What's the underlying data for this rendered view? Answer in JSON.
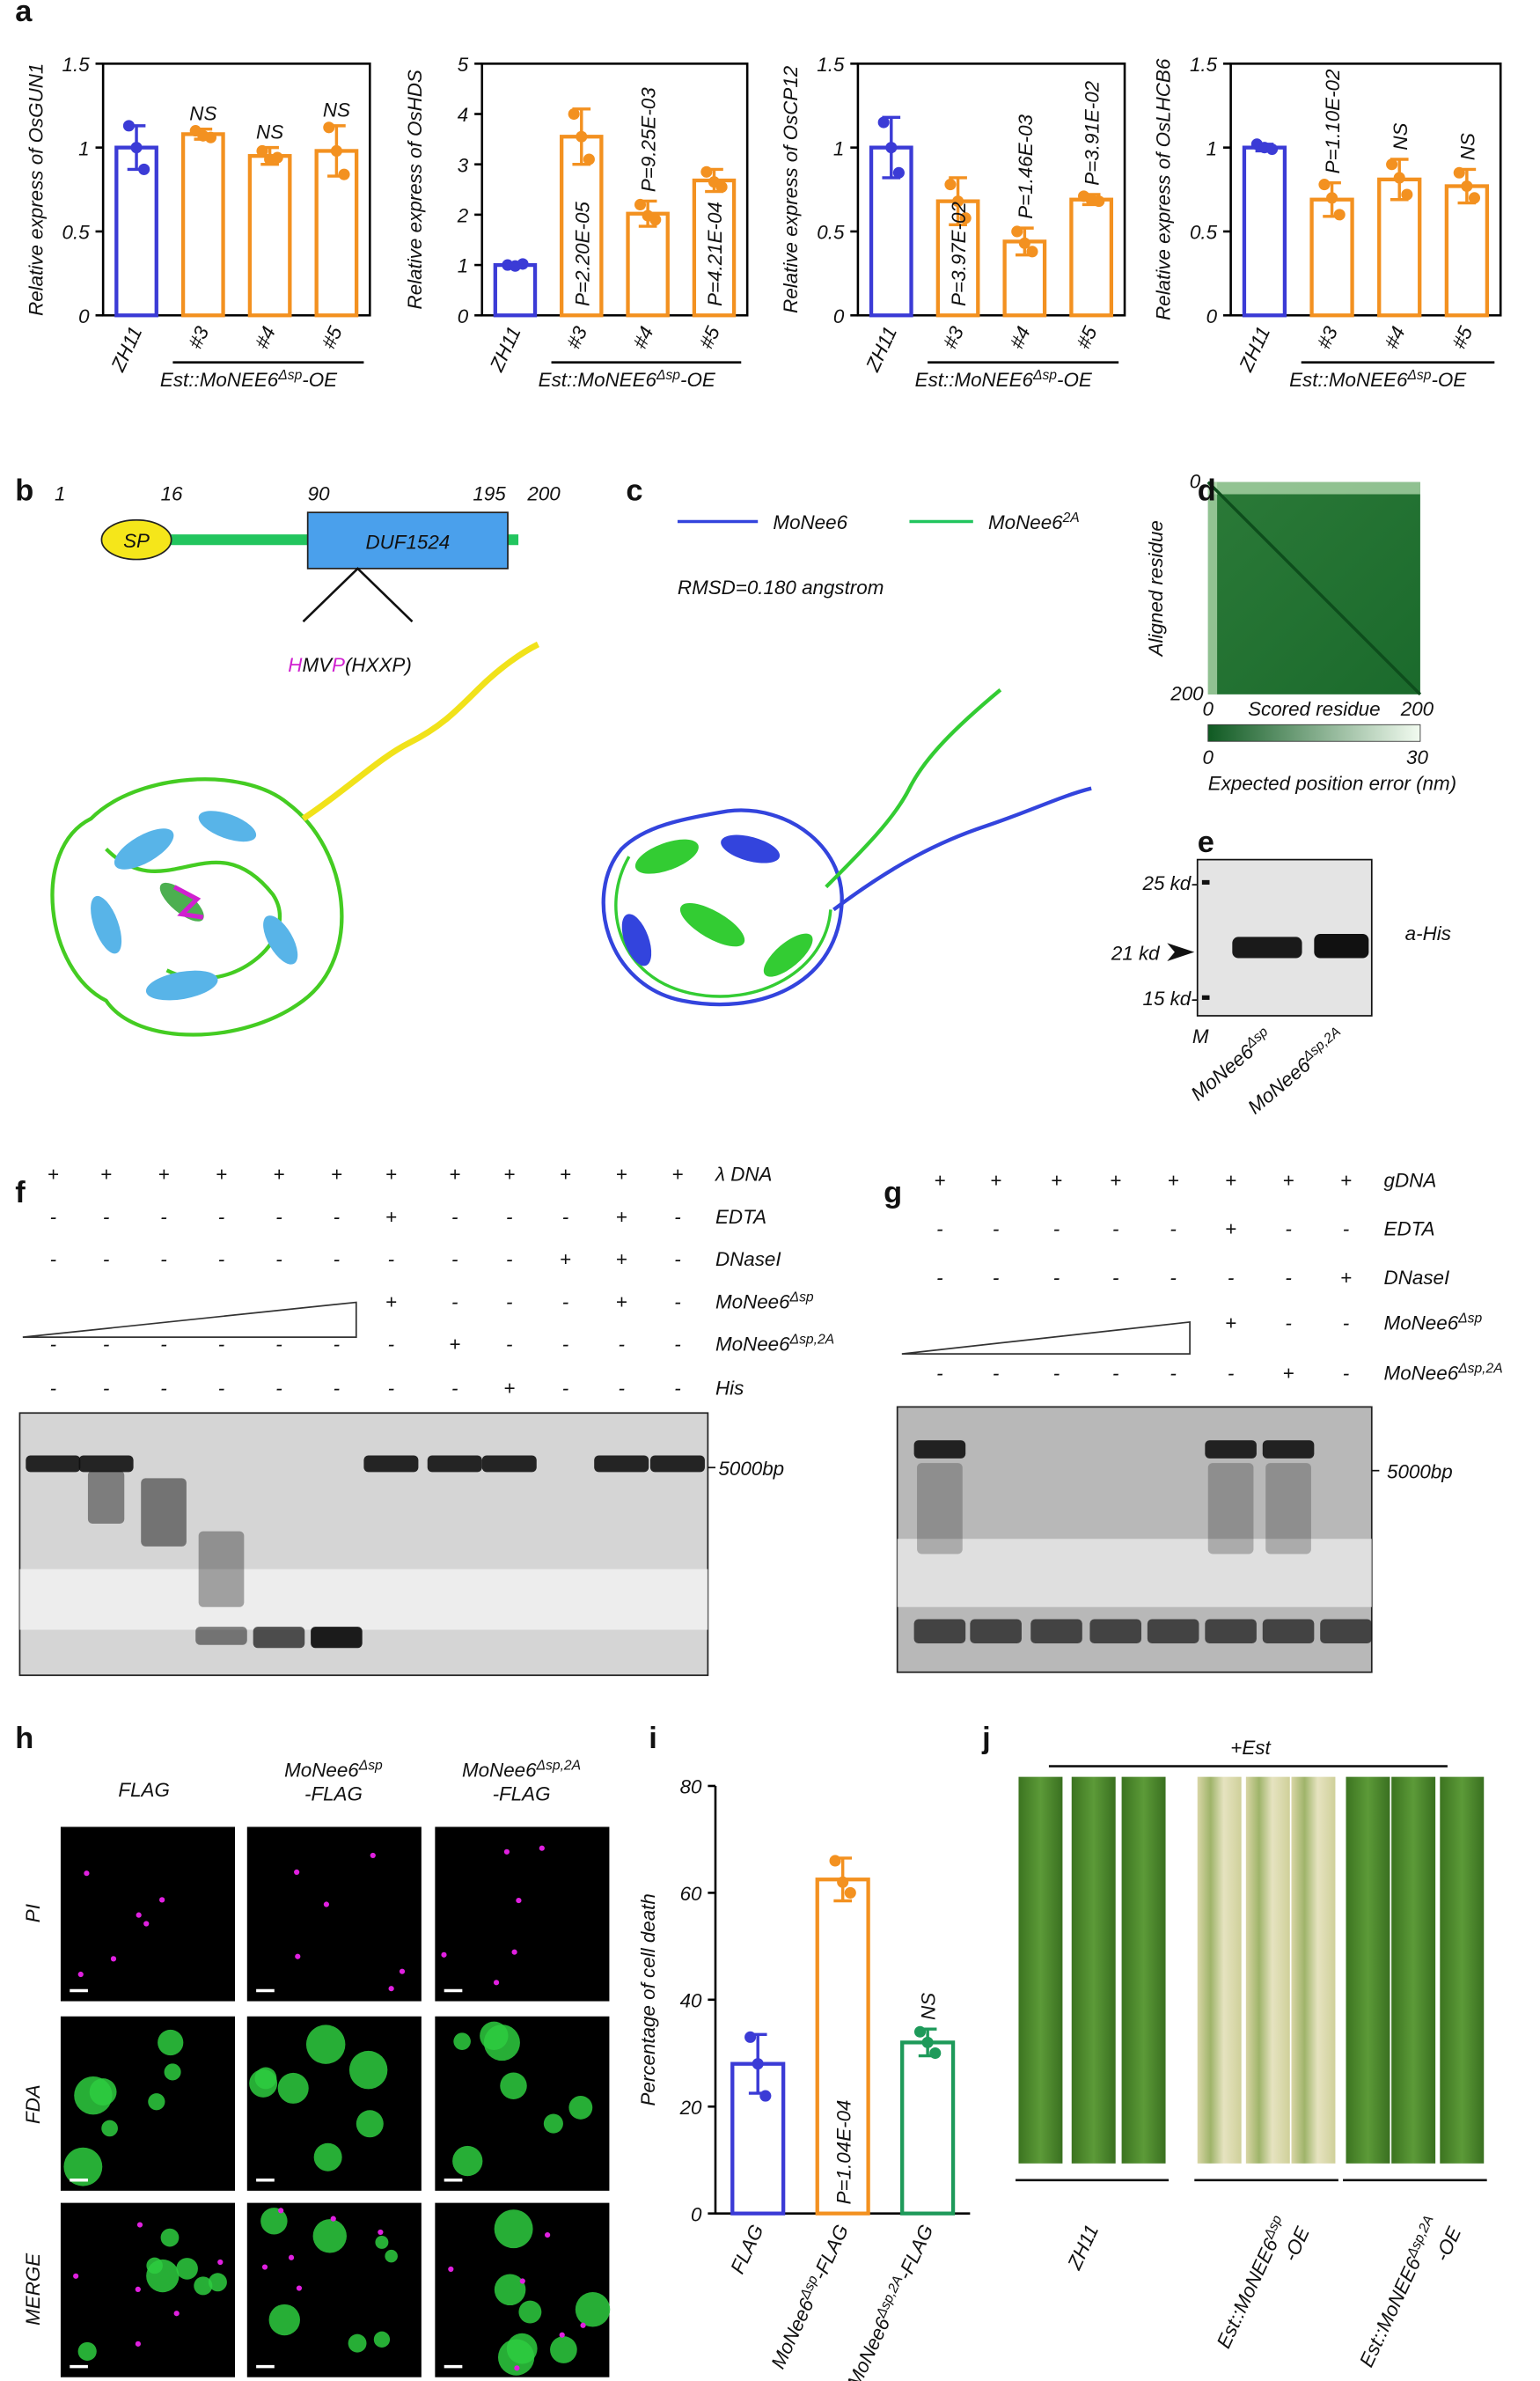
{
  "panel_letters": [
    "a",
    "b",
    "c",
    "d",
    "e",
    "f",
    "g",
    "h",
    "i",
    "j"
  ],
  "chart_data": [
    {
      "type": "bar",
      "ylabel": "Relative express of OsGUN1",
      "box": true,
      "categories": [
        "ZH11",
        "#3",
        "#4",
        "#5"
      ],
      "group_label": {
        "base": "Est::MoNEE6",
        "sup": "Δsp",
        "suffix": "-OE"
      },
      "values": [
        1.0,
        1.08,
        0.95,
        0.98
      ],
      "errors": [
        0.13,
        0.03,
        0.05,
        0.15
      ],
      "points": [
        [
          1.13,
          1.0,
          0.87
        ],
        [
          1.1,
          1.07,
          1.06
        ],
        [
          0.98,
          0.93,
          0.94
        ],
        [
          1.12,
          0.98,
          0.84
        ]
      ],
      "colors": [
        "#3b3bd6",
        "#f39120",
        "#f39120",
        "#f39120"
      ],
      "annotations": [
        null,
        "NS",
        "NS",
        "NS"
      ],
      "ylim": [
        0,
        1.5
      ],
      "yticks": [
        0,
        0.5,
        1,
        1.5
      ]
    },
    {
      "type": "bar",
      "ylabel": "Relative express of OsHDS",
      "box": true,
      "categories": [
        "ZH11",
        "#3",
        "#4",
        "#5"
      ],
      "group_label": {
        "base": "Est::MoNEE6",
        "sup": "Δsp",
        "suffix": "-OE"
      },
      "values": [
        1.0,
        3.55,
        2.02,
        2.68
      ],
      "errors": [
        0.03,
        0.55,
        0.25,
        0.22
      ],
      "points": [
        [
          1.0,
          0.98,
          1.02
        ],
        [
          4.0,
          3.55,
          3.1
        ],
        [
          2.2,
          1.98,
          1.9
        ],
        [
          2.85,
          2.65,
          2.55
        ]
      ],
      "colors": [
        "#3b3bd6",
        "#f39120",
        "#f39120",
        "#f39120"
      ],
      "annotations": [
        null,
        "P=2.20E-05",
        "P=9.25E-03",
        "P=4.21E-04"
      ],
      "ylim": [
        0,
        5
      ],
      "yticks": [
        0,
        1,
        2,
        3,
        4,
        5
      ]
    },
    {
      "type": "bar",
      "ylabel": "Relative express of OsCP12",
      "box": true,
      "categories": [
        "ZH11",
        "#3",
        "#4",
        "#5"
      ],
      "group_label": {
        "base": "Est::MoNEE6",
        "sup": "Δsp",
        "suffix": "-OE"
      },
      "values": [
        1.0,
        0.68,
        0.44,
        0.69
      ],
      "errors": [
        0.18,
        0.14,
        0.08,
        0.03
      ],
      "points": [
        [
          1.15,
          1.0,
          0.85
        ],
        [
          0.78,
          0.68,
          0.58
        ],
        [
          0.5,
          0.43,
          0.38
        ],
        [
          0.71,
          0.69,
          0.68
        ]
      ],
      "colors": [
        "#3b3bd6",
        "#f39120",
        "#f39120",
        "#f39120"
      ],
      "annotations": [
        null,
        "P=3.97E-02",
        "P=1.46E-03",
        "P=3.91E-02"
      ],
      "ylim": [
        0,
        1.5
      ],
      "yticks": [
        0,
        0.5,
        1,
        1.5
      ]
    },
    {
      "type": "bar",
      "ylabel": "Relative express of OsLHCB6",
      "box": true,
      "categories": [
        "ZH11",
        "#3",
        "#4",
        "#5"
      ],
      "group_label": {
        "base": "Est::MoNEE6",
        "sup": "Δsp",
        "suffix": "-OE"
      },
      "values": [
        1.0,
        0.69,
        0.81,
        0.77
      ],
      "errors": [
        0.02,
        0.1,
        0.12,
        0.1
      ],
      "points": [
        [
          1.02,
          1.0,
          0.99
        ],
        [
          0.78,
          0.7,
          0.6
        ],
        [
          0.9,
          0.82,
          0.72
        ],
        [
          0.85,
          0.77,
          0.7
        ]
      ],
      "colors": [
        "#3b3bd6",
        "#f39120",
        "#f39120",
        "#f39120"
      ],
      "annotations": [
        null,
        "P=1.10E-02",
        "NS",
        "NS"
      ],
      "ylim": [
        0,
        1.5
      ],
      "yticks": [
        0,
        0.5,
        1,
        1.5
      ]
    },
    {
      "type": "bar",
      "ylabel": "Percentage of cell death",
      "box": false,
      "categories": [
        "FLAG",
        {
          "base": "MoNee6",
          "sup": "Δsp",
          "suffix": "-FLAG"
        },
        {
          "base": "MoNee6",
          "sup": "Δsp,2A",
          "suffix": "-FLAG"
        }
      ],
      "values": [
        28,
        62.5,
        32
      ],
      "errors": [
        5.5,
        4,
        2.5
      ],
      "points": [
        [
          33,
          28,
          22
        ],
        [
          66,
          62,
          60
        ],
        [
          34,
          32,
          30
        ]
      ],
      "colors": [
        "#3b3bd6",
        "#f39120",
        "#1e9a5a"
      ],
      "annotations": [
        null,
        "P=1.04E-04",
        "NS"
      ],
      "ylim": [
        0,
        80
      ],
      "yticks": [
        0,
        20,
        40,
        60,
        80
      ]
    }
  ],
  "panel_b": {
    "positions": [
      1,
      16,
      90,
      195,
      200
    ],
    "signal": "SP",
    "domain": "DUF1524",
    "motif": [
      "H",
      "MV",
      "P",
      "(HXXP)"
    ]
  },
  "panel_c": {
    "legend": [
      "MoNee6",
      {
        "base": "MoNee6",
        "sup": "2A"
      }
    ],
    "rmsd": "RMSD=0.180 angstrom"
  },
  "panel_d": {
    "ylabel": "Aligned residue",
    "xlabel": "Scored residue",
    "yticks": [
      0,
      200
    ],
    "xticks": [
      0,
      200
    ],
    "colorbar_ticks": [
      0,
      30
    ],
    "colorbar_label": "Expected position error (nm)"
  },
  "panel_e": {
    "markers": [
      "25 kd-",
      "21 kd",
      "15 kd-"
    ],
    "antibody": "a-His",
    "lanes": [
      "M",
      {
        "base": "MoNee6",
        "sup": "Δsp"
      },
      {
        "base": "MoNee6",
        "sup": "Δsp,2A"
      }
    ]
  },
  "panel_f": {
    "rows": [
      "λ DNA",
      "EDTA",
      "DNaseI",
      {
        "base": "MoNee6",
        "sup": "Δsp"
      },
      {
        "base": "MoNee6",
        "sup": "Δsp,2A"
      },
      "His"
    ],
    "signs": [
      [
        "+",
        "+",
        "+",
        "+",
        "+",
        "+",
        "+",
        "+",
        "+",
        "+",
        "+",
        "+"
      ],
      [
        "-",
        "-",
        "-",
        "-",
        "-",
        "-",
        "+",
        "-",
        "-",
        "-",
        "+",
        "-"
      ],
      [
        "-",
        "-",
        "-",
        "-",
        "-",
        "-",
        "-",
        "-",
        "-",
        "+",
        "+",
        "-"
      ],
      [
        null,
        null,
        null,
        null,
        null,
        null,
        "+",
        "-",
        "-",
        "-",
        "+",
        "-"
      ],
      [
        "-",
        "-",
        "-",
        "-",
        "-",
        "-",
        "-",
        "+",
        "-",
        "-",
        "-",
        "-"
      ],
      [
        "-",
        "-",
        "-",
        "-",
        "-",
        "-",
        "-",
        "-",
        "+",
        "-",
        "-",
        "-"
      ]
    ],
    "size_marker": "5000bp"
  },
  "panel_g": {
    "rows": [
      "gDNA",
      "EDTA",
      "DNaseI",
      {
        "base": "MoNee6",
        "sup": "Δsp"
      },
      {
        "base": "MoNee6",
        "sup": "Δsp,2A"
      }
    ],
    "signs": [
      [
        "+",
        "+",
        "+",
        "+",
        "+",
        "+",
        "+",
        "+"
      ],
      [
        "-",
        "-",
        "-",
        "-",
        "-",
        "+",
        "-",
        "-"
      ],
      [
        "-",
        "-",
        "-",
        "-",
        "-",
        "-",
        "-",
        "+"
      ],
      [
        null,
        null,
        null,
        null,
        null,
        "+",
        "-",
        "-"
      ],
      [
        "-",
        "-",
        "-",
        "-",
        "-",
        "-",
        "+",
        "-"
      ]
    ],
    "size_marker": "5000bp"
  },
  "panel_h": {
    "columns": [
      "FLAG",
      {
        "base": "MoNee6",
        "sup": "Δsp",
        "suffix": "-FLAG"
      },
      {
        "base": "MoNee6",
        "sup": "Δsp,2A",
        "suffix": "-FLAG"
      }
    ],
    "rows": [
      "PI",
      "FDA",
      "MERGE"
    ]
  },
  "panel_j": {
    "treatment": "+Est",
    "labels": [
      "ZH11",
      {
        "base": "Est::MoNEE6",
        "sup": "Δsp",
        "suffix": "-OE"
      },
      {
        "base": "Est::MoNEE6",
        "sup": "Δsp,2A",
        "suffix": "-OE"
      }
    ]
  }
}
